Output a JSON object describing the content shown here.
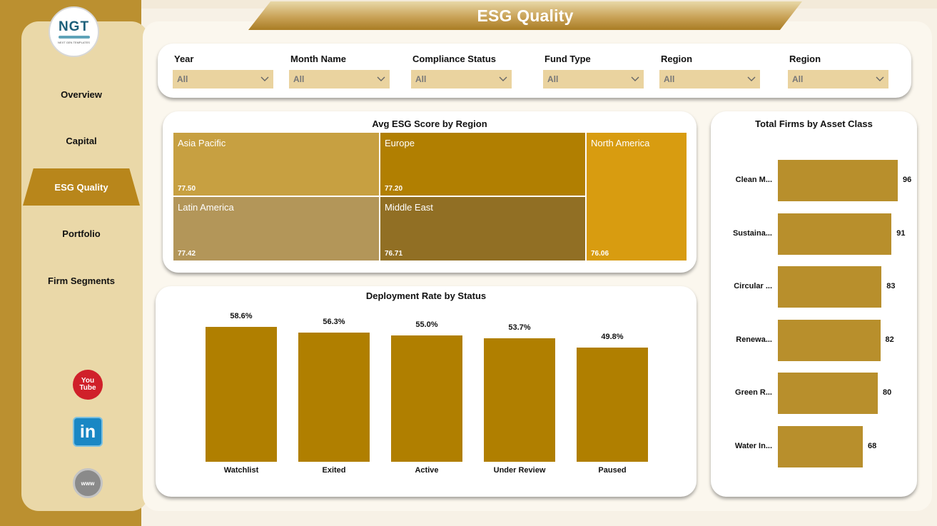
{
  "header": {
    "title": "ESG Quality"
  },
  "logo": {
    "brand": "NGT",
    "tagline": "NEXT GEN TEMPLATES"
  },
  "nav": {
    "items": [
      {
        "label": "Overview",
        "active": false
      },
      {
        "label": "Capital",
        "active": false
      },
      {
        "label": "ESG Quality",
        "active": true
      },
      {
        "label": "Portfolio",
        "active": false
      },
      {
        "label": "Firm Segments",
        "active": false
      }
    ]
  },
  "social": {
    "youtube": {
      "line1": "You",
      "line2": "Tube"
    },
    "linkedin": "in",
    "web": "www"
  },
  "filters": [
    {
      "label": "Year",
      "value": "All"
    },
    {
      "label": "Month Name",
      "value": "All"
    },
    {
      "label": "Compliance Status",
      "value": "All"
    },
    {
      "label": "Fund Type",
      "value": "All"
    },
    {
      "label": "Region",
      "value": "All"
    },
    {
      "label": "Region",
      "value": "All"
    }
  ],
  "colors": {
    "brand_gold": "#b8861b",
    "bar_gold": "#b07f00",
    "asset_bar": "#b88f2c"
  },
  "treemap": {
    "title": "Avg ESG Score by Region",
    "tiles": [
      {
        "name": "Asia Pacific",
        "value": "77.50",
        "color": "#c7a041"
      },
      {
        "name": "Europe",
        "value": "77.20",
        "color": "#b17f01"
      },
      {
        "name": "North America",
        "value": "76.06",
        "color": "#d89c10"
      },
      {
        "name": "Latin America",
        "value": "77.42",
        "color": "#b39659"
      },
      {
        "name": "Middle East",
        "value": "76.71",
        "color": "#916f24"
      }
    ]
  },
  "deployment": {
    "title": "Deployment Rate by Status",
    "chart_data": {
      "type": "bar",
      "categories": [
        "Watchlist",
        "Exited",
        "Active",
        "Under Review",
        "Paused"
      ],
      "values": [
        58.6,
        56.3,
        55.0,
        53.7,
        49.8
      ],
      "labels": [
        "58.6%",
        "56.3%",
        "55.0%",
        "53.7%",
        "49.8%"
      ],
      "unit": "%"
    }
  },
  "asset_class": {
    "title": "Total Firms by Asset Class",
    "chart_data": {
      "type": "bar",
      "orientation": "horizontal",
      "categories": [
        "Clean M...",
        "Sustaina...",
        "Circular ...",
        "Renewa...",
        "Green R...",
        "Water In..."
      ],
      "values": [
        96,
        91,
        83,
        82,
        80,
        68
      ],
      "labels": [
        "96",
        "91",
        "83",
        "82",
        "80",
        "68"
      ]
    }
  }
}
